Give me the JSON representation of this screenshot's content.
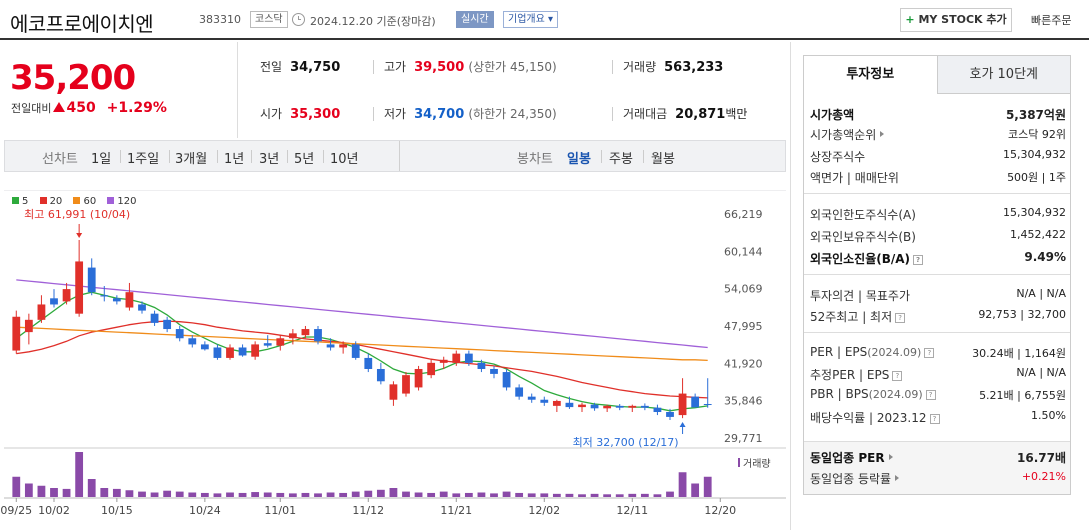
{
  "header": {
    "company_name": "에코프로에이치엔",
    "stock_code": "383310",
    "market": "코스닥",
    "date_text": "2024.12.20  기준(장마감)",
    "realtime_label": "실시간",
    "company_info_label": "기업개요 ▾",
    "mystock_label": "MY STOCK 추가",
    "mystock_plus": "+",
    "quick_order_label": "빠른주문"
  },
  "price": {
    "current": "35,200",
    "change_label": "전일대비",
    "change_amount": "450",
    "change_percent": "+1.29%"
  },
  "stats": {
    "prev_close": {
      "label": "전일",
      "value": "34,750"
    },
    "high": {
      "label": "고가",
      "value": "39,500",
      "limit": "(상한가 45,150)"
    },
    "volume": {
      "label": "거래량",
      "value": "563,233"
    },
    "open": {
      "label": "시가",
      "value": "35,300"
    },
    "low": {
      "label": "저가",
      "value": "34,700",
      "limit": "(하한가 24,350)"
    },
    "amount": {
      "label": "거래대금",
      "value": "20,871",
      "unit": "백만"
    }
  },
  "period_tabs": {
    "line_label": "선차트",
    "line_items": [
      "1일",
      "1주일",
      "3개월",
      "1년",
      "3년",
      "5년",
      "10년"
    ],
    "candle_label": "봉차트",
    "candle_items": [
      "일봉",
      "주봉",
      "월봉"
    ],
    "active_candle": "일봉"
  },
  "chart_data": {
    "type": "candlestick",
    "legend": [
      {
        "name": "5",
        "color": "#2eaa3c"
      },
      {
        "name": "20",
        "color": "#e0302a"
      },
      {
        "name": "60",
        "color": "#f08c1a"
      },
      {
        "name": "120",
        "color": "#a060d8"
      }
    ],
    "colors": {
      "up": "#e0302a",
      "down": "#2a6ed8",
      "volume": "#8a4aa8"
    },
    "y_ticks": [
      66219,
      60144,
      54069,
      47995,
      41920,
      35846,
      29771
    ],
    "y_tick_labels": [
      "66,219",
      "60,144",
      "54,069",
      "47,995",
      "41,920",
      "35,846",
      "29,771"
    ],
    "ylim": [
      29771,
      66219
    ],
    "x_ticks": [
      {
        "label": "09/25",
        "index": 0
      },
      {
        "label": "10/02",
        "index": 3
      },
      {
        "label": "10/15",
        "index": 8
      },
      {
        "label": "10/24",
        "index": 15
      },
      {
        "label": "11/01",
        "index": 21
      },
      {
        "label": "11/12",
        "index": 28
      },
      {
        "label": "11/21",
        "index": 35
      },
      {
        "label": "12/02",
        "index": 42
      },
      {
        "label": "12/11",
        "index": 49
      },
      {
        "label": "12/20",
        "index": 56
      }
    ],
    "high_annotation": "최고 61,991 (10/04)",
    "high_index": 5,
    "high_value": 61991,
    "low_annotation": "최저 32,700 (12/17)",
    "low_index": 53,
    "low_value": 32700,
    "volume_label": "거래량",
    "candles": [
      {
        "o": 44000,
        "h": 50500,
        "l": 43500,
        "c": 49500
      },
      {
        "o": 47000,
        "h": 50000,
        "l": 45000,
        "c": 49000
      },
      {
        "o": 49000,
        "h": 53000,
        "l": 48500,
        "c": 51500
      },
      {
        "o": 52500,
        "h": 54000,
        "l": 51000,
        "c": 51500
      },
      {
        "o": 52000,
        "h": 55000,
        "l": 51500,
        "c": 54000
      },
      {
        "o": 50000,
        "h": 61991,
        "l": 49500,
        "c": 58500
      },
      {
        "o": 57500,
        "h": 59000,
        "l": 53000,
        "c": 53500
      },
      {
        "o": 53000,
        "h": 54500,
        "l": 52000,
        "c": 52800
      },
      {
        "o": 52500,
        "h": 53000,
        "l": 51500,
        "c": 52000
      },
      {
        "o": 51000,
        "h": 55000,
        "l": 50500,
        "c": 53500
      },
      {
        "o": 51500,
        "h": 52000,
        "l": 50000,
        "c": 50500
      },
      {
        "o": 50000,
        "h": 50500,
        "l": 48000,
        "c": 48500
      },
      {
        "o": 49000,
        "h": 49500,
        "l": 47000,
        "c": 47500
      },
      {
        "o": 47500,
        "h": 48000,
        "l": 45500,
        "c": 46000
      },
      {
        "o": 46000,
        "h": 46500,
        "l": 44500,
        "c": 45000
      },
      {
        "o": 45000,
        "h": 45500,
        "l": 44000,
        "c": 44200
      },
      {
        "o": 44500,
        "h": 45000,
        "l": 42500,
        "c": 42800
      },
      {
        "o": 42800,
        "h": 45000,
        "l": 42500,
        "c": 44500
      },
      {
        "o": 44500,
        "h": 45000,
        "l": 43000,
        "c": 43200
      },
      {
        "o": 43000,
        "h": 45500,
        "l": 42500,
        "c": 45000
      },
      {
        "o": 45200,
        "h": 46500,
        "l": 44500,
        "c": 44800
      },
      {
        "o": 44800,
        "h": 46500,
        "l": 44000,
        "c": 46000
      },
      {
        "o": 46000,
        "h": 47500,
        "l": 45000,
        "c": 46800
      },
      {
        "o": 46500,
        "h": 48000,
        "l": 46000,
        "c": 47500
      },
      {
        "o": 47500,
        "h": 48000,
        "l": 45000,
        "c": 45500
      },
      {
        "o": 45000,
        "h": 46000,
        "l": 44000,
        "c": 44500
      },
      {
        "o": 44500,
        "h": 45500,
        "l": 43500,
        "c": 45000
      },
      {
        "o": 45000,
        "h": 45500,
        "l": 42500,
        "c": 42800
      },
      {
        "o": 42800,
        "h": 43500,
        "l": 40500,
        "c": 41000
      },
      {
        "o": 41000,
        "h": 42000,
        "l": 38500,
        "c": 39000
      },
      {
        "o": 36000,
        "h": 39000,
        "l": 35000,
        "c": 38500
      },
      {
        "o": 37000,
        "h": 40500,
        "l": 36500,
        "c": 40000
      },
      {
        "o": 38000,
        "h": 41500,
        "l": 37500,
        "c": 41000
      },
      {
        "o": 40000,
        "h": 42500,
        "l": 39500,
        "c": 42000
      },
      {
        "o": 42000,
        "h": 43000,
        "l": 41000,
        "c": 42500
      },
      {
        "o": 42000,
        "h": 44000,
        "l": 41500,
        "c": 43500
      },
      {
        "o": 43500,
        "h": 44000,
        "l": 41500,
        "c": 42000
      },
      {
        "o": 42000,
        "h": 42500,
        "l": 40500,
        "c": 41000
      },
      {
        "o": 41000,
        "h": 41500,
        "l": 39500,
        "c": 40200
      },
      {
        "o": 40500,
        "h": 41000,
        "l": 37500,
        "c": 38000
      },
      {
        "o": 38000,
        "h": 38500,
        "l": 36000,
        "c": 36500
      },
      {
        "o": 36500,
        "h": 37000,
        "l": 35500,
        "c": 36000
      },
      {
        "o": 36000,
        "h": 36500,
        "l": 35000,
        "c": 35500
      },
      {
        "o": 35000,
        "h": 36000,
        "l": 34000,
        "c": 35800
      },
      {
        "o": 35500,
        "h": 36500,
        "l": 34500,
        "c": 34800
      },
      {
        "o": 34800,
        "h": 35500,
        "l": 34000,
        "c": 35200
      },
      {
        "o": 35200,
        "h": 35500,
        "l": 34200,
        "c": 34600
      },
      {
        "o": 34600,
        "h": 35200,
        "l": 34000,
        "c": 35000
      },
      {
        "o": 35000,
        "h": 35300,
        "l": 34300,
        "c": 34700
      },
      {
        "o": 34700,
        "h": 35200,
        "l": 34000,
        "c": 35000
      },
      {
        "o": 35000,
        "h": 35400,
        "l": 34300,
        "c": 34700
      },
      {
        "o": 34700,
        "h": 35200,
        "l": 33500,
        "c": 34000
      },
      {
        "o": 34000,
        "h": 34500,
        "l": 32700,
        "c": 33200
      },
      {
        "o": 33500,
        "h": 39500,
        "l": 33000,
        "c": 37000
      },
      {
        "o": 36500,
        "h": 37000,
        "l": 34800,
        "c": 34750
      },
      {
        "o": 35300,
        "h": 39500,
        "l": 34700,
        "c": 35200
      }
    ],
    "volumes": [
      45,
      30,
      25,
      20,
      18,
      100,
      40,
      20,
      18,
      15,
      12,
      10,
      14,
      12,
      10,
      9,
      8,
      10,
      9,
      11,
      10,
      9,
      8,
      9,
      8,
      10,
      9,
      12,
      14,
      16,
      20,
      12,
      10,
      9,
      12,
      8,
      9,
      10,
      8,
      12,
      9,
      8,
      8,
      7,
      7,
      6,
      7,
      6,
      6,
      7,
      7,
      6,
      12,
      55,
      30,
      45
    ],
    "ma": {
      "5": [
        46000,
        47500,
        49000,
        50500,
        52000,
        53000,
        53500,
        53000,
        52500,
        52300,
        51800,
        51000,
        49800,
        48200,
        47000,
        46000,
        45000,
        44200,
        43800,
        43800,
        44200,
        44800,
        45500,
        46200,
        46200,
        45800,
        45200,
        44500,
        43500,
        42300,
        41000,
        40300,
        40200,
        40500,
        41100,
        42000,
        42300,
        42200,
        41800,
        41000,
        39800,
        38700,
        37500,
        36800,
        36200,
        35700,
        35300,
        35100,
        34900,
        34800,
        34800,
        34600,
        34200,
        34500,
        34700,
        35000
      ],
      "20": [
        43500,
        43800,
        44200,
        44800,
        45500,
        46400,
        47000,
        47400,
        47800,
        48200,
        48500,
        48700,
        48800,
        48700,
        48500,
        48200,
        47800,
        47500,
        47200,
        47000,
        46800,
        46500,
        46200,
        45900,
        45700,
        45500,
        45300,
        45000,
        44600,
        44200,
        43800,
        43400,
        43000,
        42600,
        42300,
        42100,
        41900,
        41700,
        41500,
        41200,
        40900,
        40600,
        40200,
        39800,
        39300,
        38800,
        38400,
        38000,
        37600,
        37300,
        37000,
        36800,
        36600,
        36500,
        36400,
        36300
      ],
      "60": [
        47800,
        47700,
        47600,
        47500,
        47400,
        47300,
        47200,
        47100,
        47000,
        46900,
        46800,
        46700,
        46600,
        46500,
        46400,
        46300,
        46200,
        46100,
        46000,
        45900,
        45800,
        45700,
        45600,
        45500,
        45400,
        45300,
        45200,
        45100,
        45000,
        44900,
        44800,
        44700,
        44600,
        44500,
        44400,
        44300,
        44200,
        44100,
        44000,
        43900,
        43800,
        43700,
        43600,
        43500,
        43400,
        43300,
        43200,
        43100,
        43000,
        42900,
        42800,
        42700,
        42600,
        42500,
        42500,
        42400
      ],
      "120": [
        55500,
        55300,
        55100,
        54900,
        54700,
        54500,
        54300,
        54100,
        53900,
        53700,
        53500,
        53300,
        53100,
        52900,
        52700,
        52500,
        52300,
        52100,
        51900,
        51700,
        51500,
        51300,
        51100,
        50900,
        50700,
        50500,
        50300,
        50100,
        49900,
        49700,
        49500,
        49300,
        49100,
        48900,
        48700,
        48500,
        48300,
        48100,
        47900,
        47700,
        47500,
        47300,
        47100,
        46900,
        46700,
        46500,
        46300,
        46100,
        45900,
        45700,
        45500,
        45300,
        45100,
        44900,
        44700,
        44500
      ]
    }
  },
  "invest_tabs": {
    "invest": "투자정보",
    "quote": "호가 10단계"
  },
  "invest_info": {
    "market_cap": {
      "label": "시가총액",
      "value": "5,387억원"
    },
    "cap_rank": {
      "label": "시가총액순위",
      "value": "코스닥 92위"
    },
    "shares": {
      "label": "상장주식수",
      "value": "15,304,932"
    },
    "face_value": {
      "label": "액면가 | 매매단위",
      "value": "500원 | 1주"
    },
    "foreign_limit": {
      "label": "외국인한도주식수(A)",
      "value": "15,304,932"
    },
    "foreign_held": {
      "label": "외국인보유주식수(B)",
      "value": "1,452,422"
    },
    "foreign_ratio": {
      "label": "외국인소진율(B/A)",
      "value": "9.49%"
    },
    "opinion": {
      "label": "투자의견 | 목표주가",
      "value": "N/A | N/A"
    },
    "week52": {
      "label": "52주최고 | 최저",
      "value": "92,753 | 32,700"
    },
    "per_eps": {
      "label": "PER | EPS",
      "year": "(2024.09)",
      "value": "30.24배 | 1,164원"
    },
    "est_per_eps": {
      "label": "추정PER | EPS",
      "value": "N/A | N/A"
    },
    "pbr_bps": {
      "label": "PBR | BPS",
      "year": "(2024.09)",
      "value": "5.21배 | 6,755원"
    },
    "dividend": {
      "label": "배당수익률 | 2023.12",
      "value": "1.50%"
    },
    "sector_per": {
      "label": "동일업종 PER",
      "value": "16.77배"
    },
    "sector_change": {
      "label": "동일업종 등락률",
      "value": "+0.21%"
    }
  }
}
